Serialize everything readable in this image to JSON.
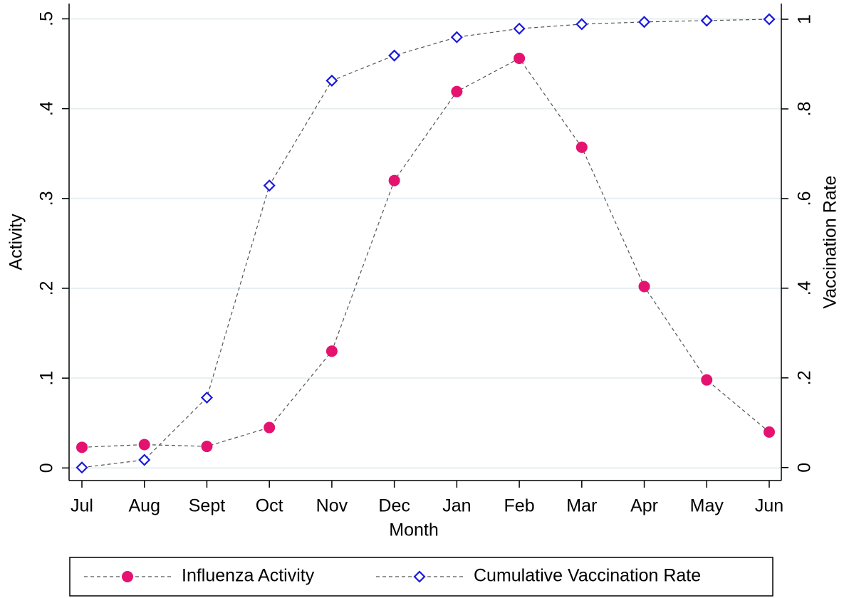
{
  "chart_data": {
    "type": "line",
    "x_label": "Month",
    "y_label": "Activity",
    "y2_label": "Vaccination Rate",
    "categories": [
      "Jul",
      "Aug",
      "Sept",
      "Oct",
      "Nov",
      "Dec",
      "Jan",
      "Feb",
      "Mar",
      "Apr",
      "May",
      "Jun"
    ],
    "series": [
      {
        "name": "Influenza Activity",
        "color": "#e5126f",
        "marker": "circle",
        "values": [
          0.023,
          0.026,
          0.024,
          0.045,
          0.13,
          0.32,
          0.419,
          0.456,
          0.357,
          0.202,
          0.098,
          0.04
        ]
      },
      {
        "name": "Cumulative Vaccination Rate",
        "color": "#1a1adb",
        "marker": "diamond",
        "axis": "y2",
        "values": [
          0.0,
          0.017,
          0.156,
          0.629,
          0.863,
          0.919,
          0.96,
          0.979,
          0.989,
          0.994,
          0.997,
          1.0
        ]
      }
    ],
    "ylim": [
      -0.014,
      0.517
    ],
    "yticks": [
      0,
      {
        "value": 0.1,
        "label": ".1"
      },
      {
        "value": 0.2,
        "label": ".2"
      },
      {
        "value": 0.3,
        "label": ".3"
      },
      {
        "value": 0.4,
        "label": ".4"
      },
      {
        "value": 0.5,
        "label": ".5"
      }
    ],
    "y2lim": [
      -0.029,
      1.035
    ],
    "y2ticks": [
      0,
      {
        "value": 0.2,
        "label": ".2"
      },
      {
        "value": 0.4,
        "label": ".4"
      },
      {
        "value": 0.6,
        "label": ".6"
      },
      {
        "value": 0.8,
        "label": ".8"
      },
      1
    ],
    "grid": true,
    "legend": "bottom"
  }
}
